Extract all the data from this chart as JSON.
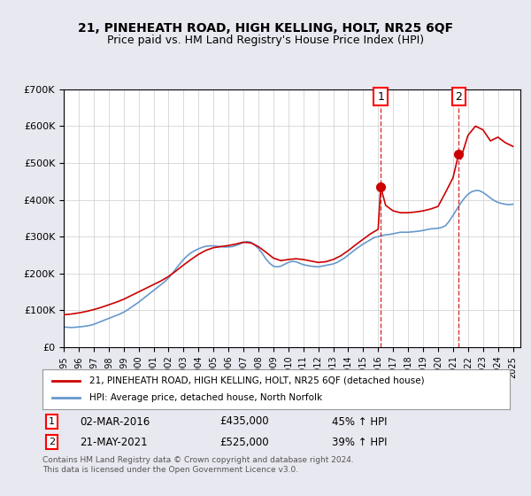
{
  "title": "21, PINEHEATH ROAD, HIGH KELLING, HOLT, NR25 6QF",
  "subtitle": "Price paid vs. HM Land Registry's House Price Index (HPI)",
  "ylabel": "",
  "xlabel": "",
  "ylim": [
    0,
    700000
  ],
  "yticks": [
    0,
    100000,
    200000,
    300000,
    400000,
    500000,
    600000,
    700000
  ],
  "ytick_labels": [
    "£0",
    "£100K",
    "£200K",
    "£300K",
    "£400K",
    "£500K",
    "£600K",
    "£700K"
  ],
  "xlim_start": 1995.0,
  "xlim_end": 2025.5,
  "marker1_x": 2016.17,
  "marker1_y": 435000,
  "marker2_x": 2021.38,
  "marker2_y": 525000,
  "legend_line1": "21, PINEHEATH ROAD, HIGH KELLING, HOLT, NR25 6QF (detached house)",
  "legend_line2": "HPI: Average price, detached house, North Norfolk",
  "note1_label": "1",
  "note1_date": "02-MAR-2016",
  "note1_price": "£435,000",
  "note1_hpi": "45% ↑ HPI",
  "note2_label": "2",
  "note2_date": "21-MAY-2021",
  "note2_price": "£525,000",
  "note2_hpi": "39% ↑ HPI",
  "footer": "Contains HM Land Registry data © Crown copyright and database right 2024.\nThis data is licensed under the Open Government Licence v3.0.",
  "red_color": "#cc0000",
  "blue_color": "#6699cc",
  "bg_color": "#e8e8f0",
  "plot_bg": "#ffffff",
  "grid_color": "#cccccc",
  "hpi_years": [
    1995.0,
    1995.25,
    1995.5,
    1995.75,
    1996.0,
    1996.25,
    1996.5,
    1996.75,
    1997.0,
    1997.25,
    1997.5,
    1997.75,
    1998.0,
    1998.25,
    1998.5,
    1998.75,
    1999.0,
    1999.25,
    1999.5,
    1999.75,
    2000.0,
    2000.25,
    2000.5,
    2000.75,
    2001.0,
    2001.25,
    2001.5,
    2001.75,
    2002.0,
    2002.25,
    2002.5,
    2002.75,
    2003.0,
    2003.25,
    2003.5,
    2003.75,
    2004.0,
    2004.25,
    2004.5,
    2004.75,
    2005.0,
    2005.25,
    2005.5,
    2005.75,
    2006.0,
    2006.25,
    2006.5,
    2006.75,
    2007.0,
    2007.25,
    2007.5,
    2007.75,
    2008.0,
    2008.25,
    2008.5,
    2008.75,
    2009.0,
    2009.25,
    2009.5,
    2009.75,
    2010.0,
    2010.25,
    2010.5,
    2010.75,
    2011.0,
    2011.25,
    2011.5,
    2011.75,
    2012.0,
    2012.25,
    2012.5,
    2012.75,
    2013.0,
    2013.25,
    2013.5,
    2013.75,
    2014.0,
    2014.25,
    2014.5,
    2014.75,
    2015.0,
    2015.25,
    2015.5,
    2015.75,
    2016.0,
    2016.25,
    2016.5,
    2016.75,
    2017.0,
    2017.25,
    2017.5,
    2017.75,
    2018.0,
    2018.25,
    2018.5,
    2018.75,
    2019.0,
    2019.25,
    2019.5,
    2019.75,
    2020.0,
    2020.25,
    2020.5,
    2020.75,
    2021.0,
    2021.25,
    2021.5,
    2021.75,
    2022.0,
    2022.25,
    2022.5,
    2022.75,
    2023.0,
    2023.25,
    2023.5,
    2023.75,
    2024.0,
    2024.25,
    2024.5,
    2024.75,
    2025.0
  ],
  "hpi_values": [
    55000,
    54000,
    53500,
    54000,
    55000,
    56000,
    57500,
    59000,
    62000,
    66000,
    70000,
    74000,
    78000,
    82000,
    86000,
    90000,
    95000,
    101000,
    108000,
    115000,
    122000,
    130000,
    138000,
    146000,
    154000,
    162000,
    170000,
    178000,
    188000,
    200000,
    213000,
    226000,
    238000,
    248000,
    256000,
    262000,
    267000,
    271000,
    274000,
    275000,
    275000,
    274000,
    273000,
    272000,
    272000,
    273000,
    276000,
    280000,
    284000,
    287000,
    285000,
    278000,
    268000,
    255000,
    240000,
    228000,
    220000,
    218000,
    220000,
    225000,
    230000,
    233000,
    232000,
    228000,
    224000,
    222000,
    220000,
    219000,
    218000,
    220000,
    222000,
    224000,
    226000,
    230000,
    236000,
    242000,
    250000,
    258000,
    266000,
    273000,
    280000,
    286000,
    292000,
    298000,
    300000,
    303000,
    305000,
    306000,
    308000,
    310000,
    312000,
    312000,
    312000,
    313000,
    314000,
    315000,
    317000,
    319000,
    321000,
    322000,
    323000,
    325000,
    330000,
    342000,
    358000,
    374000,
    390000,
    404000,
    415000,
    422000,
    425000,
    425000,
    420000,
    413000,
    405000,
    398000,
    393000,
    390000,
    388000,
    387000,
    388000
  ],
  "red_years": [
    1995.0,
    1995.5,
    1996.0,
    1996.5,
    1997.0,
    1997.5,
    1998.0,
    1998.5,
    1999.0,
    1999.5,
    2000.0,
    2000.5,
    2001.0,
    2001.5,
    2002.0,
    2002.5,
    2003.0,
    2003.5,
    2004.0,
    2004.5,
    2005.0,
    2005.5,
    2006.0,
    2006.5,
    2007.0,
    2007.5,
    2008.0,
    2008.5,
    2009.0,
    2009.5,
    2010.0,
    2010.5,
    2011.0,
    2011.5,
    2012.0,
    2012.5,
    2013.0,
    2013.5,
    2014.0,
    2014.5,
    2015.0,
    2015.5,
    2016.0,
    2016.17,
    2016.5,
    2017.0,
    2017.5,
    2018.0,
    2018.5,
    2019.0,
    2019.5,
    2020.0,
    2020.5,
    2021.0,
    2021.38,
    2021.5,
    2022.0,
    2022.5,
    2023.0,
    2023.5,
    2024.0,
    2024.5,
    2025.0
  ],
  "red_values": [
    88000,
    90000,
    93000,
    97000,
    102000,
    108000,
    115000,
    122000,
    130000,
    140000,
    150000,
    160000,
    170000,
    180000,
    192000,
    207000,
    223000,
    238000,
    252000,
    263000,
    270000,
    273000,
    276000,
    280000,
    285000,
    283000,
    273000,
    258000,
    242000,
    235000,
    238000,
    240000,
    238000,
    234000,
    230000,
    232000,
    238000,
    248000,
    262000,
    278000,
    293000,
    308000,
    320000,
    435000,
    385000,
    370000,
    365000,
    365000,
    367000,
    370000,
    375000,
    382000,
    420000,
    460000,
    525000,
    510000,
    575000,
    600000,
    590000,
    560000,
    570000,
    555000,
    545000
  ]
}
